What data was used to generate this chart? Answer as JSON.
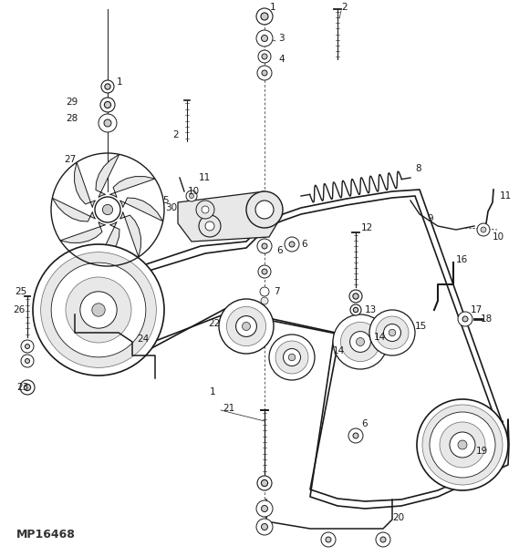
{
  "bg_color": "#ffffff",
  "fig_width": 5.69,
  "fig_height": 6.1,
  "dpi": 100,
  "watermark": "MP16468",
  "label_fontsize": 7.5,
  "color_main": "#1a1a1a",
  "color_mid": "#666666",
  "color_light": "#aaaaaa",
  "color_fill_light": "#e8e8e8",
  "color_fill_mid": "#cccccc"
}
